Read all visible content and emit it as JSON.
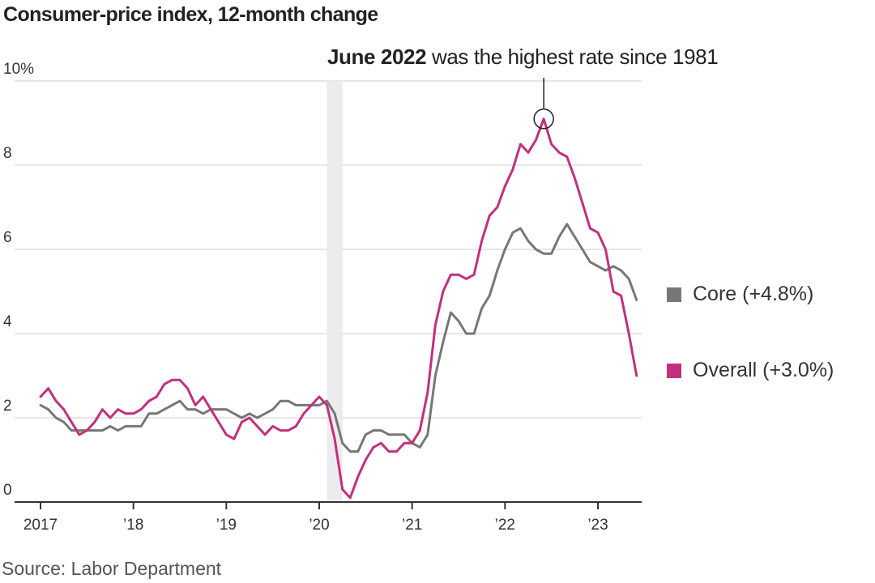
{
  "chart_data": {
    "type": "line",
    "title": "Consumer-price index, 12-month change",
    "annotation": {
      "bold": "June 2022",
      "rest": " was the highest rate since 1981",
      "x": 2022.417,
      "y": 9.1
    },
    "source": "Source: Labor Department",
    "ylim": [
      0,
      10
    ],
    "xlim": [
      2016.95,
      2023.45
    ],
    "y_ticks": [
      {
        "value": 0,
        "label": "0"
      },
      {
        "value": 2,
        "label": "2"
      },
      {
        "value": 4,
        "label": "4"
      },
      {
        "value": 6,
        "label": "6"
      },
      {
        "value": 8,
        "label": "8"
      },
      {
        "value": 10,
        "label": "10%"
      }
    ],
    "x_ticks": [
      {
        "value": 2017,
        "label": "2017"
      },
      {
        "value": 2018,
        "label": "’18"
      },
      {
        "value": 2019,
        "label": "’19"
      },
      {
        "value": 2020,
        "label": "’20"
      },
      {
        "value": 2021,
        "label": "’21"
      },
      {
        "value": 2022,
        "label": "’22"
      },
      {
        "value": 2023,
        "label": "’23"
      }
    ],
    "recession_band": [
      2020.083,
      2020.25
    ],
    "x_start": 2017.0,
    "x_step": 0.08333,
    "series": [
      {
        "name": "Core",
        "legend_label": "Core (+4.8%)",
        "color": "#777777",
        "values": [
          2.3,
          2.2,
          2.0,
          1.9,
          1.7,
          1.7,
          1.7,
          1.7,
          1.7,
          1.8,
          1.7,
          1.8,
          1.8,
          1.8,
          2.1,
          2.1,
          2.2,
          2.3,
          2.4,
          2.2,
          2.2,
          2.1,
          2.2,
          2.2,
          2.2,
          2.1,
          2.0,
          2.1,
          2.0,
          2.1,
          2.2,
          2.4,
          2.4,
          2.3,
          2.3,
          2.3,
          2.3,
          2.4,
          2.1,
          1.4,
          1.2,
          1.2,
          1.6,
          1.7,
          1.7,
          1.6,
          1.6,
          1.6,
          1.4,
          1.3,
          1.6,
          3.0,
          3.8,
          4.5,
          4.3,
          4.0,
          4.0,
          4.6,
          4.9,
          5.5,
          6.0,
          6.4,
          6.5,
          6.2,
          6.0,
          5.9,
          5.9,
          6.3,
          6.6,
          6.3,
          6.0,
          5.7,
          5.6,
          5.5,
          5.6,
          5.5,
          5.3,
          4.8
        ]
      },
      {
        "name": "Overall",
        "legend_label": "Overall (+3.0%)",
        "color": "#c2307e",
        "values": [
          2.5,
          2.7,
          2.4,
          2.2,
          1.9,
          1.6,
          1.7,
          1.9,
          2.2,
          2.0,
          2.2,
          2.1,
          2.1,
          2.2,
          2.4,
          2.5,
          2.8,
          2.9,
          2.9,
          2.7,
          2.3,
          2.5,
          2.2,
          1.9,
          1.6,
          1.5,
          1.9,
          2.0,
          1.8,
          1.6,
          1.8,
          1.7,
          1.7,
          1.8,
          2.1,
          2.3,
          2.5,
          2.3,
          1.5,
          0.3,
          0.1,
          0.6,
          1.0,
          1.3,
          1.4,
          1.2,
          1.2,
          1.4,
          1.4,
          1.7,
          2.6,
          4.2,
          5.0,
          5.4,
          5.4,
          5.3,
          5.4,
          6.2,
          6.8,
          7.0,
          7.5,
          7.9,
          8.5,
          8.3,
          8.6,
          9.1,
          8.5,
          8.3,
          8.2,
          7.7,
          7.1,
          6.5,
          6.4,
          6.0,
          5.0,
          4.9,
          4.0,
          3.0
        ]
      }
    ]
  }
}
